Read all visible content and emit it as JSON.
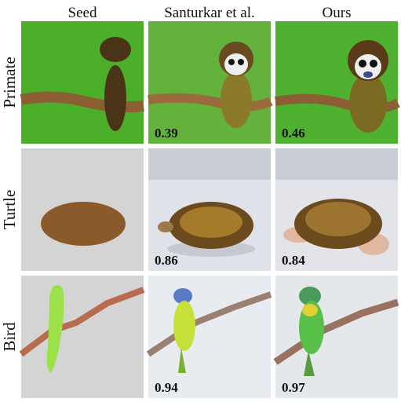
{
  "columns": [
    "Seed",
    "Santurkar et al.",
    "Ours"
  ],
  "rows": [
    {
      "label": "Primate",
      "scores": [
        0.39,
        0.46
      ]
    },
    {
      "label": "Turtle",
      "scores": [
        0.86,
        0.84
      ]
    },
    {
      "label": "Bird",
      "scores": [
        0.94,
        0.97
      ]
    }
  ]
}
